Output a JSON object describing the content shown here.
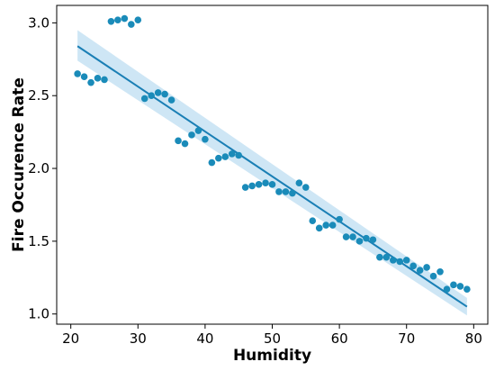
{
  "chart_data": {
    "type": "scatter",
    "title": "",
    "xlabel": "Humidity",
    "ylabel": "Fire Occurence Rate",
    "xlim": [
      17.9,
      82.1
    ],
    "ylim": [
      0.93,
      3.12
    ],
    "xticks": [
      20,
      30,
      40,
      50,
      60,
      70,
      80
    ],
    "xtick_labels": [
      "20",
      "30",
      "40",
      "50",
      "60",
      "70",
      "80"
    ],
    "yticks": [
      1.0,
      1.5,
      2.0,
      2.5,
      3.0
    ],
    "ytick_labels": [
      "1.0",
      "1.5",
      "2.0",
      "2.5",
      "3.0"
    ],
    "grid": false,
    "legend": "none",
    "point_color": "#1a8bb9",
    "series": [
      {
        "x": [
          21,
          22,
          23,
          24,
          25,
          26,
          27,
          28,
          29,
          30,
          31,
          32,
          33,
          34,
          35,
          36,
          37,
          38,
          39,
          40,
          41,
          42,
          43,
          44,
          45,
          46,
          47,
          48,
          49,
          50,
          51,
          52,
          53,
          54,
          55,
          56,
          57,
          58,
          59,
          60,
          61,
          62,
          63,
          64,
          65,
          66,
          67,
          68,
          69,
          70,
          71,
          72,
          73,
          74,
          75,
          76,
          77,
          78,
          79
        ],
        "y": [
          2.65,
          2.63,
          2.59,
          2.62,
          2.61,
          3.01,
          3.02,
          3.03,
          2.99,
          3.02,
          2.48,
          2.5,
          2.52,
          2.51,
          2.47,
          2.19,
          2.17,
          2.23,
          2.26,
          2.2,
          2.04,
          2.07,
          2.08,
          2.1,
          2.09,
          1.87,
          1.88,
          1.89,
          1.9,
          1.89,
          1.84,
          1.84,
          1.83,
          1.9,
          1.87,
          1.64,
          1.59,
          1.61,
          1.61,
          1.65,
          1.53,
          1.53,
          1.5,
          1.52,
          1.51,
          1.39,
          1.39,
          1.37,
          1.36,
          1.37,
          1.33,
          1.3,
          1.32,
          1.26,
          1.29,
          1.17,
          1.2,
          1.19,
          1.17
        ]
      }
    ],
    "regression": {
      "color": "#1a7fb5",
      "band_color": "#c6e2f3",
      "x": [
        21,
        79
      ],
      "y": [
        2.84,
        1.05
      ],
      "ci_lower": [
        2.74,
        0.99
      ],
      "ci_upper": [
        2.95,
        1.11
      ]
    }
  }
}
